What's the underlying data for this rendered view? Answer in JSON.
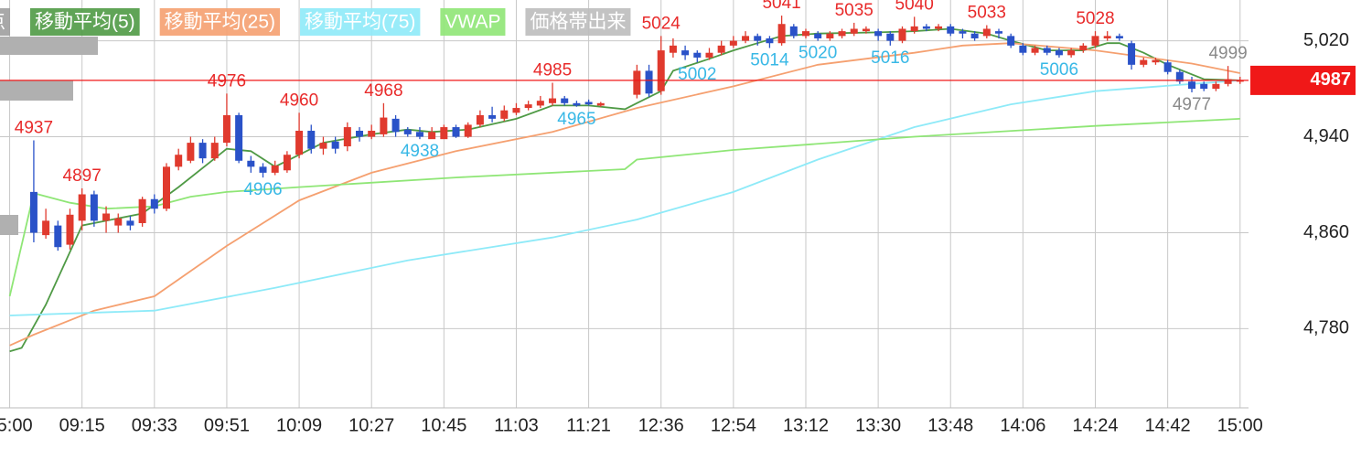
{
  "chart_data": {
    "type": "candlestick",
    "xlim": [
      -0.8,
      102.7
    ],
    "ylim": [
      4714,
      5054
    ],
    "yticks": [
      {
        "value": 5020,
        "label": "5,020"
      },
      {
        "value": 4940,
        "label": "4,940"
      },
      {
        "value": 4860,
        "label": "4,860"
      },
      {
        "value": 4780,
        "label": "4,780"
      }
    ],
    "xticks": [
      {
        "value": 0,
        "label": "15:00"
      },
      {
        "value": 6,
        "label": "09:15"
      },
      {
        "value": 12,
        "label": "09:33"
      },
      {
        "value": 18,
        "label": "09:51"
      },
      {
        "value": 24,
        "label": "10:09"
      },
      {
        "value": 30,
        "label": "10:27"
      },
      {
        "value": 36,
        "label": "10:45"
      },
      {
        "value": 42,
        "label": "11:03"
      },
      {
        "value": 48,
        "label": "11:21"
      },
      {
        "value": 54,
        "label": "12:36"
      },
      {
        "value": 60,
        "label": "12:54"
      },
      {
        "value": 66,
        "label": "13:12"
      },
      {
        "value": 72,
        "label": "13:30"
      },
      {
        "value": 78,
        "label": "13:48"
      },
      {
        "value": 84,
        "label": "14:06"
      },
      {
        "value": 90,
        "label": "14:24"
      },
      {
        "value": 96,
        "label": "14:42"
      },
      {
        "value": 102,
        "label": "15:00"
      }
    ],
    "grid": true,
    "up_color": "#e03a2e",
    "down_color": "#2a52c8",
    "candles": {
      "x": [
        2,
        3,
        4,
        5,
        6,
        7,
        8,
        9,
        10,
        11,
        12,
        13,
        14,
        15,
        16,
        17,
        18,
        19,
        20,
        21,
        22,
        23,
        24,
        25,
        26,
        27,
        28,
        29,
        30,
        31,
        32,
        33,
        34,
        35,
        36,
        37,
        38,
        39,
        40,
        41,
        42,
        43,
        44,
        45,
        46,
        47,
        48,
        49,
        52,
        53,
        54,
        55,
        56,
        57,
        58,
        59,
        60,
        61,
        62,
        63,
        64,
        65,
        66,
        67,
        68,
        69,
        70,
        71,
        72,
        73,
        74,
        75,
        76,
        77,
        78,
        79,
        80,
        81,
        82,
        83,
        84,
        85,
        86,
        87,
        88,
        89,
        90,
        91,
        92,
        93,
        94,
        95,
        96,
        97,
        98,
        99,
        100,
        101,
        102
      ],
      "open": [
        4894,
        4858,
        4866,
        4850,
        4870,
        4892,
        4870,
        4866,
        4870,
        4868,
        4888,
        4880,
        4915,
        4920,
        4935,
        4922,
        4935,
        4958,
        4920,
        4915,
        4910,
        4912,
        4925,
        4945,
        4930,
        4936,
        4932,
        4945,
        4940,
        4942,
        4955,
        4946,
        4944,
        4938,
        4938,
        4948,
        4940,
        4950,
        4958,
        4955,
        4960,
        4964,
        4966,
        4968,
        4972,
        4968,
        4969,
        4966,
        4975,
        4995,
        4978,
        5010,
        5012,
        5010,
        5006,
        5010,
        5016,
        5020,
        5024,
        5022,
        5018,
        5032,
        5024,
        5026,
        5022,
        5024,
        5026,
        5028,
        5028,
        5026,
        5020,
        5028,
        5032,
        5030,
        5032,
        5028,
        5026,
        5024,
        5028,
        5024,
        5016,
        5010,
        5014,
        5012,
        5008,
        5012,
        5016,
        5022,
        5024,
        5018,
        5000,
        5002,
        5002,
        4994,
        4986,
        4984,
        4980,
        4984,
        4986
      ],
      "high": [
        4937,
        4880,
        4870,
        4880,
        4897,
        4895,
        4882,
        4876,
        4874,
        4890,
        4892,
        4918,
        4930,
        4940,
        4938,
        4940,
        4976,
        4960,
        4924,
        4918,
        4920,
        4928,
        4960,
        4950,
        4940,
        4940,
        4952,
        4948,
        4950,
        4968,
        4958,
        4948,
        4948,
        4948,
        4950,
        4950,
        4952,
        4962,
        4965,
        4966,
        4968,
        4970,
        4974,
        4985,
        4974,
        4970,
        4971,
        4969,
        5000,
        5000,
        5024,
        5022,
        5016,
        5012,
        5014,
        5020,
        5024,
        5028,
        5026,
        5024,
        5041,
        5034,
        5030,
        5028,
        5028,
        5030,
        5035,
        5032,
        5030,
        5028,
        5032,
        5040,
        5034,
        5034,
        5034,
        5030,
        5028,
        5033,
        5030,
        5026,
        5018,
        5016,
        5016,
        5014,
        5014,
        5018,
        5028,
        5028,
        5026,
        5020,
        5006,
        5006,
        5004,
        4996,
        4990,
        4986,
        4986,
        4999,
        4990
      ],
      "low": [
        4852,
        4855,
        4845,
        4846,
        4862,
        4865,
        4860,
        4860,
        4862,
        4865,
        4876,
        4878,
        4912,
        4918,
        4918,
        4920,
        4932,
        4918,
        4910,
        4906,
        4908,
        4910,
        4922,
        4926,
        4925,
        4926,
        4928,
        4936,
        4938,
        4940,
        4940,
        4940,
        4938,
        4939,
        4939,
        4939,
        4939,
        4948,
        4952,
        4953,
        4958,
        4962,
        4964,
        4966,
        4966,
        4965,
        4966,
        4965,
        4972,
        4973,
        4975,
        5006,
        5004,
        5002,
        5004,
        5008,
        5014,
        5018,
        5016,
        5014,
        5016,
        5022,
        5022,
        5020,
        5020,
        5022,
        5024,
        5026,
        5020,
        5016,
        5018,
        5026,
        5028,
        5028,
        5024,
        5022,
        5020,
        5022,
        5022,
        5014,
        5008,
        5008,
        5008,
        5006,
        5006,
        5010,
        5014,
        5020,
        5020,
        4996,
        4998,
        5000,
        4992,
        4984,
        4977,
        4978,
        4978,
        4982,
        4984
      ],
      "close": [
        4860,
        4870,
        4848,
        4875,
        4892,
        4870,
        4876,
        4872,
        4866,
        4888,
        4880,
        4915,
        4925,
        4935,
        4922,
        4935,
        4958,
        4920,
        4915,
        4910,
        4916,
        4925,
        4945,
        4930,
        4935,
        4930,
        4948,
        4940,
        4945,
        4956,
        4944,
        4942,
        4940,
        4944,
        4948,
        4940,
        4950,
        4958,
        4955,
        4962,
        4964,
        4967,
        4970,
        4972,
        4968,
        4966,
        4967,
        4968,
        4995,
        4976,
        5012,
        5016,
        5008,
        5006,
        5010,
        5016,
        5020,
        5024,
        5020,
        5018,
        5034,
        5024,
        5028,
        5022,
        5026,
        5028,
        5030,
        5030,
        5024,
        5020,
        5030,
        5032,
        5030,
        5032,
        5026,
        5026,
        5022,
        5030,
        5026,
        5016,
        5010,
        5014,
        5010,
        5008,
        5012,
        5016,
        5024,
        5024,
        5022,
        5000,
        5004,
        5004,
        4994,
        4986,
        4980,
        4980,
        4984,
        4988,
        4987
      ]
    },
    "series": [
      {
        "name": "移動平均(5)",
        "color": "#4f9a45",
        "x": [
          0,
          1,
          3,
          6,
          11,
          14,
          17,
          18,
          20,
          22,
          23,
          26,
          30,
          33,
          35,
          38,
          42,
          45,
          48,
          51,
          52,
          54,
          55,
          58,
          60,
          62,
          64,
          67,
          72,
          75,
          78,
          81,
          83,
          86,
          89,
          91,
          92,
          94,
          96,
          99,
          102
        ],
        "values": [
          4761,
          4764,
          4800,
          4866,
          4876,
          4898,
          4922,
          4930,
          4928,
          4915,
          4920,
          4935,
          4942,
          4946,
          4944,
          4946,
          4955,
          4966,
          4966,
          4963,
          4968,
          4978,
          4995,
          5005,
          5012,
          5018,
          5024,
          5026,
          5027,
          5028,
          5030,
          5026,
          5020,
          5012,
          5012,
          5018,
          5018,
          5010,
          5000,
          4988,
          4987
        ]
      },
      {
        "name": "移動平均(25)",
        "color": "#f5a070",
        "x": [
          0,
          2,
          7,
          12,
          18,
          24,
          30,
          37,
          45,
          52,
          60,
          67,
          75,
          79,
          83,
          90,
          98,
          102
        ],
        "values": [
          4766,
          4775,
          4795,
          4807,
          4849,
          4887,
          4910,
          4928,
          4944,
          4964,
          4982,
          5000,
          5010,
          5016,
          5018,
          5012,
          5001,
          4993
        ]
      },
      {
        "name": "移動平均(75)",
        "color": "#8eeaf8",
        "x": [
          0,
          12,
          22,
          33,
          45,
          52,
          60,
          67,
          75,
          83,
          90,
          98,
          102
        ],
        "values": [
          4791,
          4795,
          4814,
          4837,
          4856,
          4871,
          4894,
          4921,
          4948,
          4967,
          4978,
          4984,
          4987
        ]
      },
      {
        "name": "VWAP",
        "color": "#8fe676",
        "x": [
          0,
          2,
          5,
          8,
          12,
          15,
          18,
          24,
          37,
          51,
          52,
          60,
          75,
          90,
          102
        ],
        "values": [
          4807,
          4893,
          4885,
          4880,
          4882,
          4890,
          4894,
          4898,
          4906,
          4913,
          4921,
          4929,
          4940,
          4949,
          4955
        ]
      }
    ],
    "buttons": [
      {
        "label": "点",
        "color": "#9e9e9e"
      },
      {
        "label": "価格帯出来",
        "color": "#bcbcbc"
      }
    ],
    "last_price": 4987,
    "last_price_color": "#f01818",
    "annotations": [
      {
        "x": 2,
        "value": 4937,
        "position": "above",
        "color": "#e82a2a"
      },
      {
        "x": 6,
        "value": 4897,
        "position": "above",
        "color": "#e82a2a"
      },
      {
        "x": 18,
        "value": 4976,
        "position": "above",
        "color": "#e82a2a"
      },
      {
        "x": 24,
        "value": 4960,
        "position": "above",
        "color": "#e82a2a"
      },
      {
        "x": 31,
        "value": 4968,
        "position": "above",
        "color": "#e82a2a"
      },
      {
        "x": 45,
        "value": 4985,
        "position": "above",
        "color": "#e82a2a"
      },
      {
        "x": 54,
        "value": 5024,
        "position": "above",
        "color": "#e82a2a"
      },
      {
        "x": 64,
        "value": 5041,
        "position": "above",
        "color": "#e82a2a"
      },
      {
        "x": 70,
        "value": 5035,
        "position": "above",
        "color": "#e82a2a"
      },
      {
        "x": 75,
        "value": 5040,
        "position": "above",
        "color": "#e82a2a"
      },
      {
        "x": 81,
        "value": 5033,
        "position": "above",
        "color": "#e82a2a"
      },
      {
        "x": 90,
        "value": 5028,
        "position": "above",
        "color": "#e82a2a"
      },
      {
        "x": 101,
        "value": 4999,
        "position": "above",
        "color": "#8a8a8a"
      },
      {
        "x": 21,
        "value": 4906,
        "position": "below",
        "color": "#38b8e6"
      },
      {
        "x": 34,
        "value": 4938,
        "position": "below",
        "color": "#38b8e6"
      },
      {
        "x": 47,
        "value": 4965,
        "position": "below",
        "color": "#38b8e6"
      },
      {
        "x": 57,
        "value": 5002,
        "position": "below",
        "color": "#38b8e6"
      },
      {
        "x": 63,
        "value": 5014,
        "position": "below",
        "color": "#38b8e6"
      },
      {
        "x": 67,
        "value": 5020,
        "position": "below",
        "color": "#38b8e6"
      },
      {
        "x": 73,
        "value": 5016,
        "position": "below",
        "color": "#38b8e6"
      },
      {
        "x": 87,
        "value": 5006,
        "position": "below",
        "color": "#38b8e6"
      },
      {
        "x": 98,
        "value": 4977,
        "position": "below",
        "color": "#8a8a8a"
      }
    ]
  }
}
